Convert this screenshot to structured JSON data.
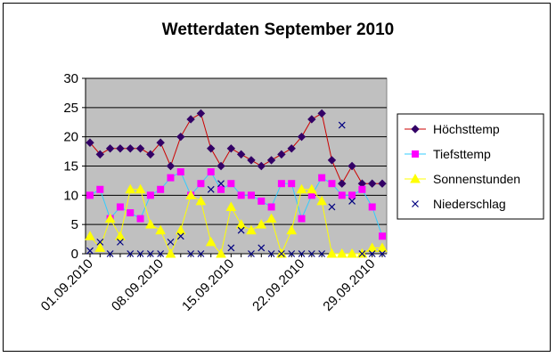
{
  "chart_data": {
    "type": "line",
    "title": "Wetterdaten September 2010",
    "xlabel": "",
    "ylabel": "",
    "ylim": [
      0,
      30
    ],
    "yticks": [
      0,
      5,
      10,
      15,
      20,
      25,
      30
    ],
    "grid": "horizontal",
    "legend_position": "right",
    "plot_background": "#c0c0c0",
    "x": [
      "01.09.2010",
      "02.09.2010",
      "03.09.2010",
      "04.09.2010",
      "05.09.2010",
      "06.09.2010",
      "07.09.2010",
      "08.09.2010",
      "09.09.2010",
      "10.09.2010",
      "11.09.2010",
      "12.09.2010",
      "13.09.2010",
      "14.09.2010",
      "15.09.2010",
      "16.09.2010",
      "17.09.2010",
      "18.09.2010",
      "19.09.2010",
      "20.09.2010",
      "21.09.2010",
      "22.09.2010",
      "23.09.2010",
      "24.09.2010",
      "25.09.2010",
      "26.09.2010",
      "27.09.2010",
      "28.09.2010",
      "29.09.2010",
      "30.09.2010"
    ],
    "xtick_labels": [
      "01.09.2010",
      "08.09.2010",
      "15.09.2010",
      "22.09.2010",
      "29.09.2010"
    ],
    "series": [
      {
        "name": "Höchsttemp",
        "color": "#cc0000",
        "marker": "diamond",
        "marker_color": "#330066",
        "line": true,
        "values": [
          19,
          17,
          18,
          18,
          18,
          18,
          17,
          19,
          15,
          20,
          23,
          24,
          18,
          15,
          18,
          17,
          16,
          15,
          16,
          17,
          18,
          20,
          23,
          24,
          16,
          12,
          15,
          12,
          12,
          12
        ]
      },
      {
        "name": "Tiefsttemp",
        "color": "#33ccff",
        "marker": "square",
        "marker_color": "#ff00ff",
        "line": true,
        "values": [
          10,
          11,
          6,
          8,
          7,
          6,
          10,
          11,
          13,
          14,
          10,
          12,
          14,
          11,
          12,
          10,
          10,
          9,
          8,
          12,
          12,
          6,
          10,
          13,
          12,
          10,
          10,
          11,
          8,
          3
        ]
      },
      {
        "name": "Sonnenstunden",
        "color": "#ffff00",
        "marker": "triangle",
        "marker_color": "#ffff00",
        "line": true,
        "values": [
          3,
          1,
          6,
          3,
          11,
          11,
          5,
          4,
          0,
          4,
          10,
          9,
          2,
          0,
          8,
          5,
          4,
          5,
          6,
          0,
          4,
          11,
          11,
          9,
          0,
          0,
          0,
          0,
          1,
          1
        ]
      },
      {
        "name": "Niederschlag",
        "color": "#000080",
        "marker": "x",
        "marker_color": "#000080",
        "line": false,
        "values": [
          0.5,
          2,
          0,
          2,
          0,
          0,
          0,
          0,
          2,
          3,
          0,
          0,
          11,
          12,
          1,
          4,
          0,
          1,
          0,
          0,
          0,
          0,
          0,
          0,
          8,
          22,
          9,
          0,
          0,
          0
        ]
      }
    ]
  }
}
